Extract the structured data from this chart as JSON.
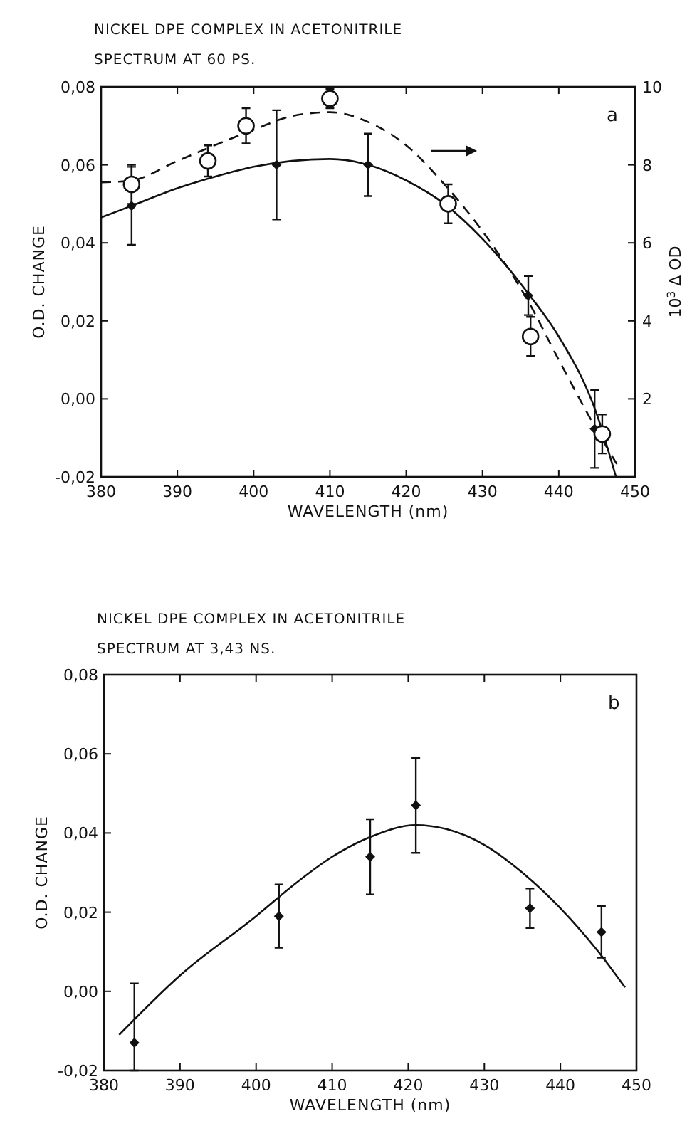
{
  "chart_data": [
    {
      "type": "scatter",
      "title": "NICKEL DPE COMPLEX IN ACETONITRILE",
      "subtitle": "SPECTRUM AT 60 PS.",
      "xlabel": "WAVELENGTH (nm)",
      "ylabel": "O.D. CHANGE",
      "y2label": "10$^{3}$ Δ OD",
      "annotations": [
        "a"
      ],
      "xlim": [
        380,
        450
      ],
      "xticks": [
        380,
        390,
        400,
        410,
        420,
        430,
        440,
        450
      ],
      "ylim": [
        -0.02,
        0.08
      ],
      "yticks": [
        {
          "value": -0.02,
          "label": "-0,02"
        },
        {
          "value": 0,
          "label": "0,00"
        },
        {
          "value": 0.02,
          "label": "0,02"
        },
        {
          "value": 0.04,
          "label": "0,04"
        },
        {
          "value": 0.06,
          "label": "0,06"
        },
        {
          "value": 0.08,
          "label": "0,08"
        }
      ],
      "y2lim": [
        0,
        10
      ],
      "y2ticks": [
        2,
        4,
        6,
        8,
        10
      ],
      "grid": false,
      "series": [
        {
          "type": "line",
          "color": "#111111",
          "line_style": "solid",
          "x": [
            380,
            384,
            390,
            395,
            400,
            405,
            410,
            415,
            420,
            425,
            430,
            436,
            440,
            445,
            447.5
          ],
          "values": [
            0.0465,
            0.0495,
            0.054,
            0.057,
            0.0595,
            0.061,
            0.0615,
            0.06,
            0.056,
            0.05,
            0.041,
            0.027,
            0.016,
            -0.004,
            -0.02
          ]
        },
        {
          "type": "line",
          "axis": "y2",
          "color": "#111111",
          "line_style": "dashed",
          "x": [
            380,
            384,
            390,
            400,
            405,
            410,
            415,
            420,
            425,
            430,
            436,
            440,
            445,
            448
          ],
          "values": [
            7.55,
            7.6,
            8.1,
            8.9,
            9.25,
            9.35,
            9.1,
            8.5,
            7.5,
            6.3,
            4.5,
            3.0,
            1.2,
            0.2
          ]
        },
        {
          "color": "#111111",
          "marker": "diamond",
          "x": [
            384,
            403,
            415,
            436,
            444.7
          ],
          "values": [
            0.0495,
            0.06,
            0.06,
            0.0265,
            -0.0077
          ],
          "errors": [
            0.01,
            0.014,
            0.008,
            0.005,
            0.01
          ]
        },
        {
          "axis": "y2",
          "color": "#111111",
          "marker": "circle",
          "x": [
            384,
            394,
            399,
            410,
            425.5,
            436.3,
            445.7
          ],
          "values": [
            7.5,
            8.1,
            9.0,
            9.7,
            7.0,
            3.6,
            1.1
          ],
          "errors": [
            0.5,
            0.4,
            0.45,
            0.25,
            0.5,
            0.5,
            0.5
          ]
        }
      ]
    },
    {
      "type": "scatter",
      "title": "NICKEL DPE COMPLEX IN ACETONITRILE",
      "subtitle": "SPECTRUM AT 3,43 NS.",
      "xlabel": "WAVELENGTH (nm)",
      "ylabel": "O.D. CHANGE",
      "annotations": [
        "b"
      ],
      "xlim": [
        380,
        450
      ],
      "xticks": [
        380,
        390,
        400,
        410,
        420,
        430,
        440,
        450
      ],
      "ylim": [
        -0.02,
        0.08
      ],
      "yticks": [
        {
          "value": -0.02,
          "label": "-0,02"
        },
        {
          "value": 0,
          "label": "0,00"
        },
        {
          "value": 0.02,
          "label": "0,02"
        },
        {
          "value": 0.04,
          "label": "0,04"
        },
        {
          "value": 0.06,
          "label": "0,06"
        },
        {
          "value": 0.08,
          "label": "0,08"
        }
      ],
      "grid": false,
      "series": [
        {
          "type": "line",
          "color": "#111111",
          "line_style": "solid",
          "x": [
            382,
            390,
            400,
            405,
            410,
            415,
            421,
            425,
            430,
            435,
            440,
            445,
            448.5
          ],
          "values": [
            -0.011,
            0.004,
            0.019,
            0.027,
            0.034,
            0.039,
            0.042,
            0.041,
            0.037,
            0.03,
            0.021,
            0.01,
            0.001
          ]
        },
        {
          "color": "#111111",
          "marker": "diamond",
          "x": [
            384,
            403,
            415,
            421,
            436,
            445.4
          ],
          "values": [
            -0.013,
            0.019,
            0.034,
            0.047,
            0.021,
            0.015
          ],
          "errors": [
            [
              -0.02,
              0.002
            ],
            0.008,
            0.0095,
            0.012,
            0.005,
            0.0065
          ]
        }
      ]
    }
  ]
}
